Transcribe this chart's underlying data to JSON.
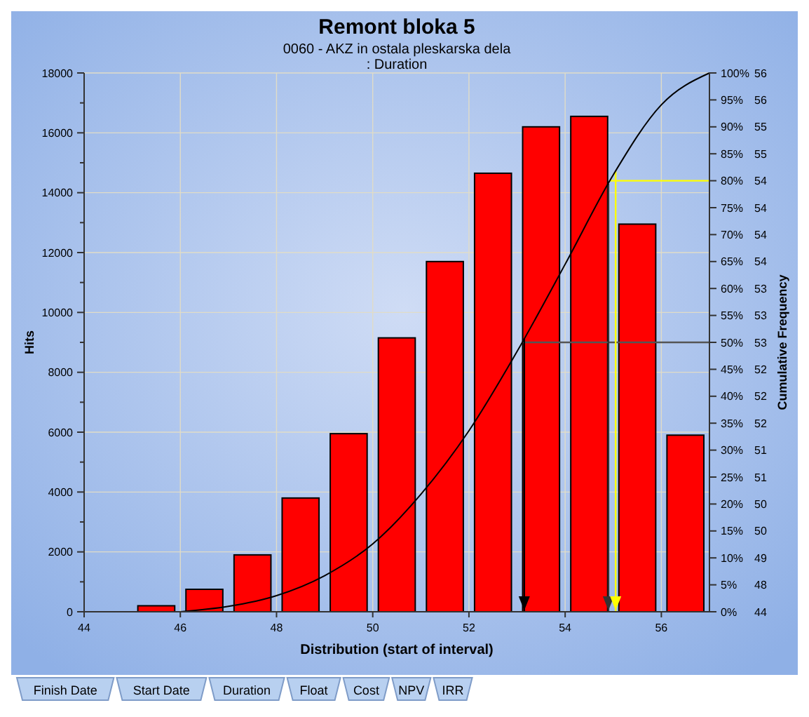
{
  "chart_data": {
    "type": "histogram",
    "title": "Remont bloka 5",
    "subtitle": "0060 - AKZ in ostala pleskarska dela\n: Duration",
    "xlabel": "Distribution (start of interval)",
    "ylabel": "Hits",
    "y2label": "Cumulative Frequency",
    "bins": [
      45,
      46,
      47,
      48,
      49,
      50,
      51,
      52,
      53,
      54,
      55,
      56,
      57
    ],
    "series": [
      {
        "type": "histogram",
        "color": "#ff0000",
        "values": [
          200,
          750,
          1900,
          3800,
          5950,
          9150,
          11700,
          14650,
          16200,
          16550,
          12950,
          5900
        ]
      },
      {
        "type": "line",
        "axis": "y2",
        "color": "#000000",
        "x": [
          46,
          47,
          48,
          49,
          50,
          51,
          52,
          53,
          54,
          55,
          56,
          57
        ],
        "values": [
          0,
          1,
          3,
          6.7,
          12.6,
          21.8,
          33.6,
          48.3,
          64.5,
          81.1,
          94.1,
          100
        ]
      }
    ],
    "xlim": [
      44,
      57
    ],
    "xticks": [
      44,
      46,
      48,
      50,
      52,
      54,
      56
    ],
    "ylim": [
      0,
      18000
    ],
    "yticks": [
      0,
      {
        "value": 1000,
        "label": null
      },
      2000,
      {
        "value": 3000,
        "label": null
      },
      4000,
      {
        "value": 5000,
        "label": null
      },
      6000,
      {
        "value": 7000,
        "label": null
      },
      8000,
      {
        "value": 9000,
        "label": null
      },
      10000,
      {
        "value": 11000,
        "label": null
      },
      12000,
      {
        "value": 13000,
        "label": null
      },
      14000,
      {
        "value": 15000,
        "label": null
      },
      16000,
      {
        "value": 17000,
        "label": null
      },
      18000
    ],
    "y2lim": [
      0,
      100
    ],
    "y2ticks": [
      {
        "value": 0,
        "label": "0%"
      },
      {
        "value": 5,
        "label": "5%"
      },
      {
        "value": 10,
        "label": "10%"
      },
      {
        "value": 15,
        "label": "15%"
      },
      {
        "value": 20,
        "label": "20%"
      },
      {
        "value": 25,
        "label": "25%"
      },
      {
        "value": 30,
        "label": "30%"
      },
      {
        "value": 35,
        "label": "35%"
      },
      {
        "value": 40,
        "label": "40%"
      },
      {
        "value": 45,
        "label": "45%"
      },
      {
        "value": 50,
        "label": "50%"
      },
      {
        "value": 55,
        "label": "55%"
      },
      {
        "value": 60,
        "label": "60%"
      },
      {
        "value": 65,
        "label": "65%"
      },
      {
        "value": 70,
        "label": "70%"
      },
      {
        "value": 75,
        "label": "75%"
      },
      {
        "value": 80,
        "label": "80%"
      },
      {
        "value": 85,
        "label": "85%"
      },
      {
        "value": 90,
        "label": "90%"
      },
      {
        "value": 95,
        "label": "95%"
      },
      {
        "value": 100,
        "label": "100%"
      }
    ],
    "y2_categories": [
      "44",
      "48",
      "49",
      "50",
      "50",
      "51",
      "51",
      "52",
      "52",
      "52",
      "53",
      "53",
      "53",
      "54",
      "54",
      "54",
      "54",
      "55",
      "55",
      "56",
      "56"
    ],
    "ref_lines": [
      {
        "axis": "y2",
        "value": 50,
        "color": "#555555"
      },
      {
        "axis": "y2",
        "value": 80,
        "color": "#ffff00"
      },
      {
        "axis": "x",
        "value": 53.15,
        "color": "#000000"
      },
      {
        "axis": "x",
        "value": 54.9,
        "color": "#333333"
      },
      {
        "axis": "x",
        "value": 55.05,
        "color": "#ffff00"
      }
    ],
    "grid": true,
    "annotations": [
      "Finish Date",
      "Start Date",
      "Duration",
      "Float",
      "Cost",
      "NPV",
      "IRR"
    ]
  }
}
